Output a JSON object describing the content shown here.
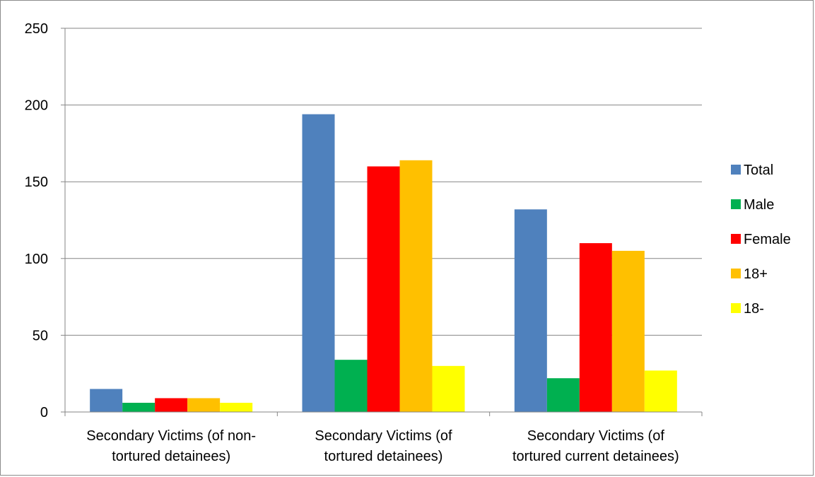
{
  "chart_data": {
    "type": "bar",
    "title": "",
    "xlabel": "",
    "ylabel": "",
    "ylim": [
      0,
      250
    ],
    "yticks": [
      0,
      50,
      100,
      150,
      200,
      250
    ],
    "grid": true,
    "legend_position": "right",
    "categories": [
      [
        "Secondary Victims (of non-",
        "tortured detainees)"
      ],
      [
        "Secondary Victims (of",
        "tortured detainees)"
      ],
      [
        "Secondary Victims (of",
        "tortured current detainees)"
      ]
    ],
    "series": [
      {
        "name": "Total",
        "color": "#4f81bd",
        "values": [
          15,
          194,
          132
        ]
      },
      {
        "name": "Male",
        "color": "#00b050",
        "values": [
          6,
          34,
          22
        ]
      },
      {
        "name": "Female",
        "color": "#ff0000",
        "values": [
          9,
          160,
          110
        ]
      },
      {
        "name": "18+",
        "color": "#ffc000",
        "values": [
          9,
          164,
          105
        ]
      },
      {
        "name": "18-",
        "color": "#ffff00",
        "values": [
          6,
          30,
          27
        ]
      }
    ]
  }
}
